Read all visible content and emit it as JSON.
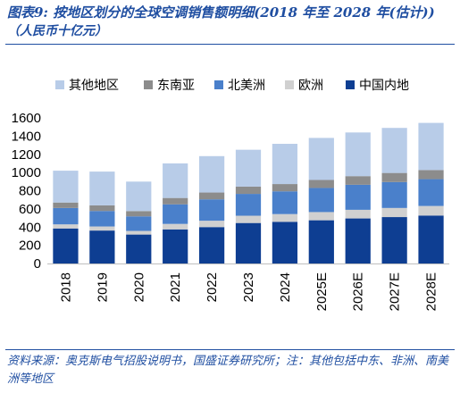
{
  "header": {
    "title": "图表9:  按地区划分的全球空调销售额明细(2018 年至 2028 年(估计))",
    "subtitle": "（人民币十亿元）"
  },
  "footer": {
    "source": "资料来源：奥克斯电气招股说明书，国盛证券研究所；注：其他包括中东、非洲、南美洲等地区"
  },
  "chart_data": {
    "type": "bar",
    "stacked": true,
    "categories": [
      "2018",
      "2019",
      "2020",
      "2021",
      "2022",
      "2023",
      "2024",
      "2025E",
      "2026E",
      "2027E",
      "2028E"
    ],
    "ylim": [
      0,
      1600
    ],
    "yticks": [
      0,
      200,
      400,
      600,
      800,
      1000,
      1200,
      1400,
      1600
    ],
    "grid": false,
    "legend_position": "top",
    "legend_order": [
      "其他地区",
      "东南亚",
      "北美洲",
      "欧洲",
      "中国内地"
    ],
    "series": [
      {
        "name": "中国内地",
        "color": "#0e3e92",
        "values": [
          385,
          362,
          318,
          375,
          400,
          445,
          458,
          475,
          495,
          510,
          527
        ]
      },
      {
        "name": "欧洲",
        "color": "#d0d0d0",
        "values": [
          45,
          45,
          40,
          60,
          70,
          80,
          85,
          90,
          95,
          100,
          105
        ]
      },
      {
        "name": "北美洲",
        "color": "#4a80cb",
        "values": [
          180,
          170,
          160,
          215,
          235,
          240,
          250,
          265,
          275,
          285,
          295
        ]
      },
      {
        "name": "东南亚",
        "color": "#8c8c8c",
        "values": [
          60,
          62,
          58,
          70,
          75,
          80,
          80,
          88,
          95,
          100,
          100
        ]
      },
      {
        "name": "其他地区",
        "color": "#b8cce8",
        "values": [
          350,
          371,
          324,
          380,
          400,
          405,
          442,
          462,
          480,
          495,
          518
        ]
      }
    ]
  }
}
